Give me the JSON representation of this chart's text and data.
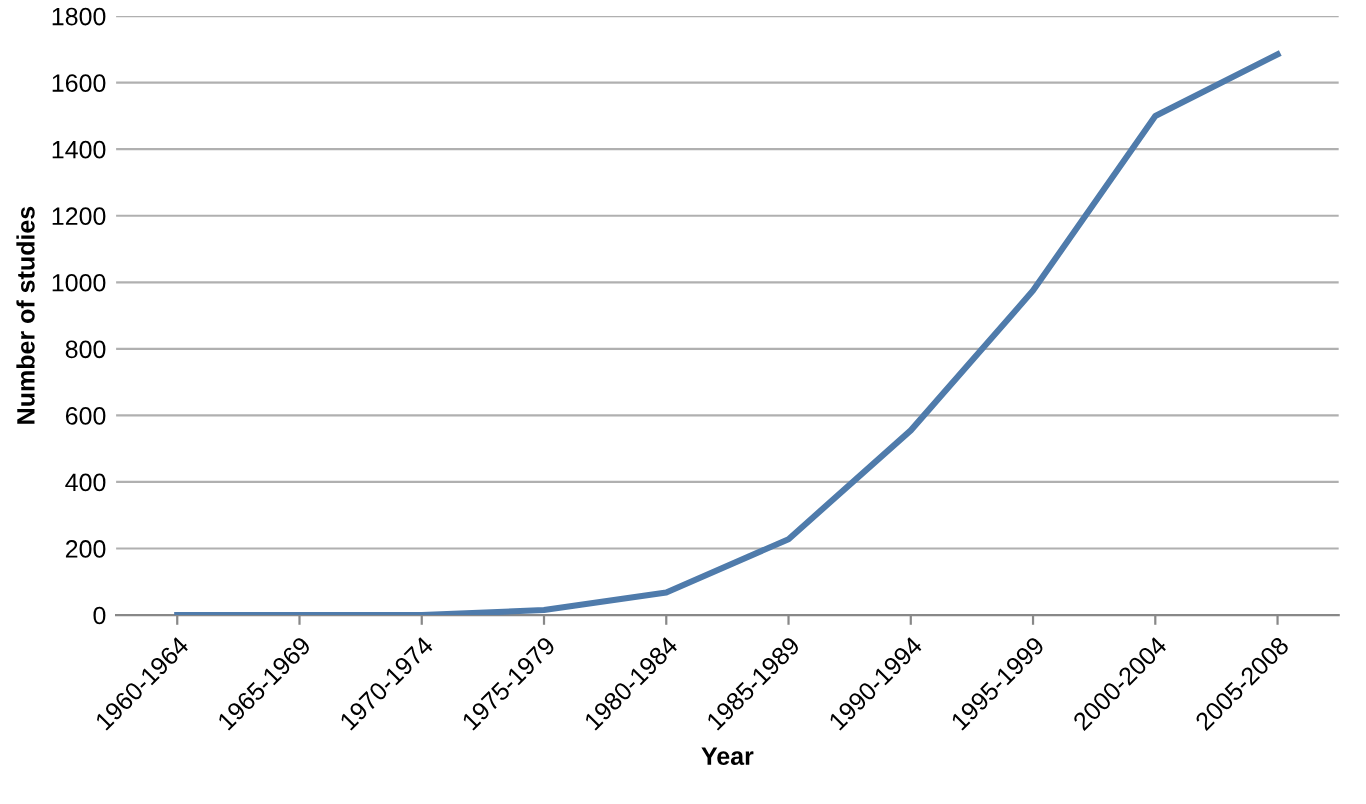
{
  "chart_data": {
    "type": "line",
    "xlabel": "Year",
    "ylabel": "Number of studies",
    "categories": [
      "1960-1964",
      "1965-1969",
      "1970-1974",
      "1975-1979",
      "1980-1984",
      "1985-1989",
      "1990-1994",
      "1995-1999",
      "2000-2004",
      "2005-2008"
    ],
    "series": [
      {
        "color": "#4f7bab",
        "values": [
          0,
          0,
          0,
          15,
          68,
          228,
          555,
          975,
          1500,
          1685
        ]
      }
    ],
    "ylim": [
      0,
      1800
    ],
    "yticks": [
      0,
      200,
      400,
      600,
      800,
      1000,
      1200,
      1400,
      1600,
      1800
    ],
    "grid": "y",
    "legend": false,
    "marker": "none",
    "line_style": "solid"
  }
}
